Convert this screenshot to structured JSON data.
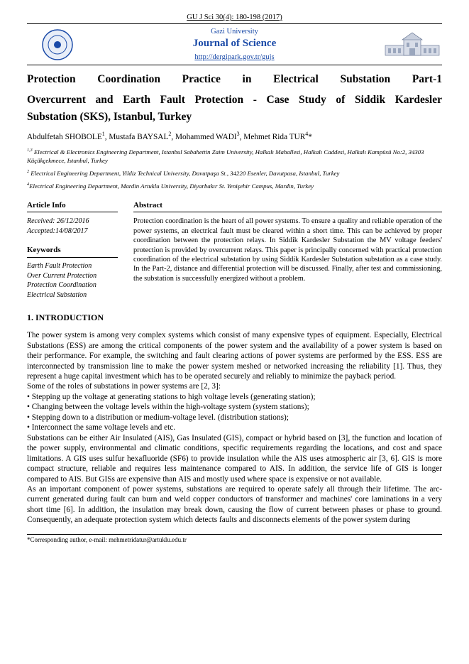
{
  "citation": "GU J Sci 30(4): 180-198 (2017)",
  "banner": {
    "university": "Gazi University",
    "journal": "Journal of Science",
    "url": "http://dergipark.gov.tr/gujs",
    "logo_left_color": "#1a4aa8",
    "logo_right_color": "#5a6a8a"
  },
  "title_line1": "Protection Coordination Practice in Electrical Substation Part-1",
  "title_line2": "Overcurrent and Earth Fault Protection - Case Study of Siddik Kardesler",
  "title_line3": "Substation (SKS), Istanbul, Turkey",
  "authors_html": "Abdulfetah SHOBOLE<sup>1</sup>, Mustafa BAYSAL<sup>2</sup>, Mohammed WADI<sup>3</sup>, Mehmet Rida TUR<sup>4</sup>*",
  "affiliations": [
    "<sup>1,3</sup> Electrical & Electronics Engineering Department, Istanbul Sabahettin Zaim University, Halkalı Mahallesi, Halkalı Caddesi, Halkalı Kampüsü No:2, 34303 Küçükçekmece, Istanbul, Turkey",
    "<sup>2</sup> Electrical Engineering Department, Yildiz Technical University, Davutpaşa St., 34220 Esenler, Davutpasa, Istanbul, Turkey",
    "<sup>4</sup>Electrical Engineering Department, Mardin Artuklu University, Diyarbakır St. Yenişehir Campus, Mardin, Turkey"
  ],
  "article_info": {
    "heading": "Article Info",
    "received": "Received: 26/12/2016",
    "accepted": "Accepted:14/08/2017"
  },
  "keywords": {
    "heading": "Keywords",
    "items": [
      "Earth Fault Protection",
      "Over Current Protection",
      "Protection Coordination",
      "Electrical Substation"
    ]
  },
  "abstract": {
    "heading": "Abstract",
    "text": "Protection coordination is the heart of all power systems. To ensure a quality and reliable operation of the power systems, an electrical fault must be cleared within a short time. This can be achieved by proper coordination between the protection relays. In Siddik Kardesler Substation the MV voltage feeders' protection is provided by overcurrent relays. This paper is principally concerned with practical protection coordination of the electrical substation by using Siddik Kardesler Substation substation as a case study. In the Part-2, distance and differential protection will be discussed. Finally, after test and commissioning, the substation is successfully energized without a problem."
  },
  "intro": {
    "heading": "1.  INTRODUCTION",
    "p1": "The power system is among very complex systems which consist of many expensive types of equipment. Especially, Electrical Substations (ESS) are among the critical components of the power system and the availability of a power system is based on their performance. For example, the switching and fault clearing actions of power systems are performed by the ESS. ESS are interconnected by transmission line to make the power system meshed or networked increasing the reliability [1]. Thus, they represent a huge capital investment which has to be operated securely and reliably to minimize the payback period.",
    "p2": "Some of the roles of substations in power systems are [2, 3]:",
    "b1": "• Stepping up the voltage at generating stations to high voltage levels (generating station);",
    "b2": "• Changing between the voltage levels within the high-voltage system (system stations);",
    "b3": "• Stepping down to a distribution or medium-voltage level. (distribution stations);",
    "b4": "• Interconnect the same voltage levels and etc.",
    "p3": "Substations can be either Air Insulated (AIS), Gas Insulated (GIS), compact or hybrid based on [3], the function and location of the power supply, environmental and climatic conditions, specific requirements regarding the locations, and cost and space limitations. A GIS uses sulfur hexafluoride (SF6) to provide insulation while the AIS uses atmospheric air [3, 6]. GIS is more compact structure, reliable and requires less maintenance compared to AIS. In addition, the service life of GIS is longer compared to AIS. But GISs are expensive than AIS and mostly used where space is expensive or not available.",
    "p4": "As an important component of power systems, substations are required to operate safely all through their lifetime. The arc-current generated during fault can burn and weld copper conductors of transformer and machines' core laminations in a very short time [6]. In addition, the insulation may break down, causing the flow of current between phases or phase to ground. Consequently, an adequate protection system which detects faults and disconnects elements of the power system during"
  },
  "footer": "*Corresponding author, e-mail: mehmetridatur@artuklu.edu.tr"
}
